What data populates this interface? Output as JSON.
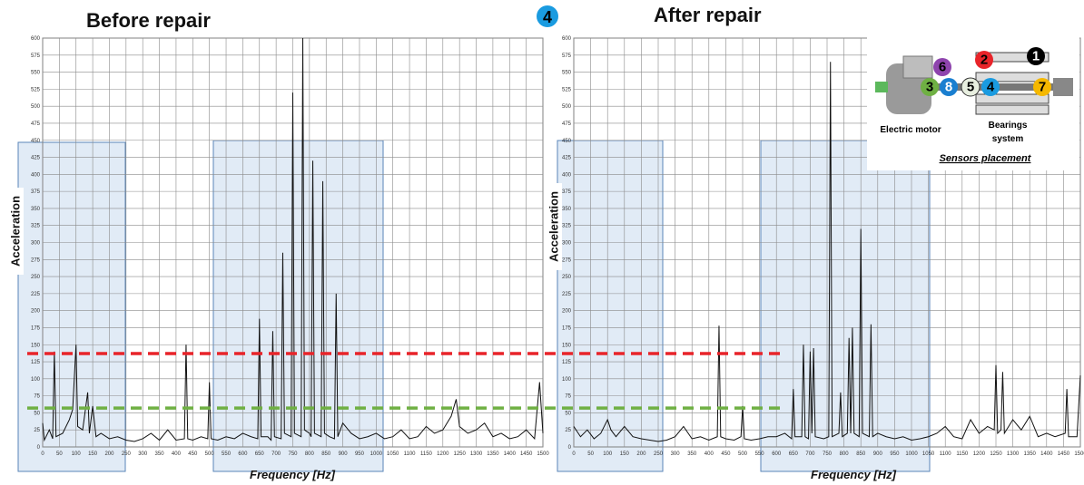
{
  "chart_data": [
    {
      "type": "line",
      "title": "Before repair",
      "x_label": "Frequency [Hz]",
      "y_label": "Acceleration",
      "color": "#111111",
      "grid": true,
      "xlim": [
        0,
        1500
      ],
      "ylim": [
        0,
        600
      ],
      "xticks": [
        0,
        50,
        100,
        150,
        200,
        250,
        300,
        350,
        400,
        450,
        500,
        550,
        600,
        650,
        700,
        750,
        800,
        850,
        900,
        950,
        1000,
        1050,
        1100,
        1150,
        1200,
        1250,
        1300,
        1350,
        1400,
        1450,
        1500
      ],
      "yticks": [
        0,
        25,
        50,
        75,
        100,
        125,
        150,
        175,
        200,
        225,
        250,
        275,
        300,
        325,
        350,
        375,
        400,
        425,
        450,
        475,
        500,
        525,
        550,
        575,
        600
      ],
      "thresholds": [
        {
          "value": 137,
          "color": "#e8242a"
        },
        {
          "value": 57,
          "color": "#6fb043"
        }
      ],
      "x": [
        0,
        5,
        20,
        30,
        35,
        40,
        60,
        80,
        90,
        100,
        105,
        120,
        135,
        140,
        150,
        160,
        175,
        200,
        225,
        250,
        275,
        300,
        325,
        350,
        375,
        400,
        425,
        430,
        435,
        450,
        475,
        495,
        500,
        505,
        525,
        550,
        575,
        600,
        625,
        645,
        650,
        655,
        675,
        685,
        690,
        695,
        715,
        720,
        725,
        745,
        750,
        755,
        775,
        780,
        785,
        800,
        805,
        810,
        815,
        835,
        840,
        845,
        860,
        875,
        880,
        885,
        900,
        925,
        950,
        975,
        1000,
        1025,
        1050,
        1075,
        1100,
        1125,
        1150,
        1175,
        1200,
        1225,
        1240,
        1250,
        1275,
        1300,
        1325,
        1350,
        1375,
        1400,
        1425,
        1450,
        1475,
        1490,
        1500
      ],
      "values": [
        35,
        10,
        25,
        12,
        140,
        15,
        20,
        40,
        55,
        150,
        30,
        25,
        80,
        20,
        60,
        15,
        20,
        12,
        15,
        10,
        8,
        12,
        20,
        10,
        25,
        10,
        12,
        150,
        12,
        10,
        15,
        12,
        95,
        12,
        10,
        15,
        12,
        20,
        15,
        12,
        188,
        15,
        15,
        10,
        170,
        15,
        12,
        285,
        20,
        15,
        520,
        20,
        15,
        600,
        25,
        20,
        15,
        420,
        20,
        15,
        390,
        20,
        15,
        12,
        225,
        15,
        35,
        20,
        12,
        15,
        20,
        12,
        15,
        25,
        12,
        15,
        30,
        20,
        25,
        45,
        70,
        30,
        20,
        25,
        35,
        15,
        20,
        12,
        15,
        25,
        12,
        95,
        20
      ]
    },
    {
      "type": "line",
      "title": "After repair",
      "x_label": "Frequency [Hz]",
      "y_label": "Acceleration",
      "color": "#111111",
      "grid": true,
      "xlim": [
        0,
        1500
      ],
      "ylim": [
        0,
        600
      ],
      "xticks": [
        0,
        50,
        100,
        150,
        200,
        250,
        300,
        350,
        400,
        450,
        500,
        550,
        600,
        650,
        700,
        750,
        800,
        850,
        900,
        950,
        1000,
        1050,
        1100,
        1150,
        1200,
        1250,
        1300,
        1350,
        1400,
        1450,
        1500
      ],
      "yticks": [
        0,
        25,
        50,
        75,
        100,
        125,
        150,
        175,
        200,
        225,
        250,
        275,
        300,
        325,
        350,
        375,
        400,
        425,
        450,
        475,
        500,
        525,
        550,
        575,
        600
      ],
      "x": [
        0,
        20,
        40,
        60,
        80,
        100,
        110,
        125,
        150,
        175,
        200,
        225,
        250,
        275,
        300,
        325,
        350,
        375,
        400,
        425,
        430,
        435,
        450,
        475,
        495,
        500,
        505,
        525,
        550,
        575,
        600,
        625,
        645,
        650,
        655,
        675,
        680,
        685,
        695,
        700,
        705,
        710,
        715,
        740,
        755,
        760,
        765,
        785,
        790,
        795,
        810,
        815,
        820,
        825,
        830,
        845,
        850,
        855,
        875,
        880,
        885,
        900,
        925,
        950,
        975,
        1000,
        1025,
        1050,
        1075,
        1100,
        1125,
        1150,
        1175,
        1200,
        1225,
        1245,
        1250,
        1255,
        1265,
        1270,
        1275,
        1300,
        1325,
        1350,
        1375,
        1400,
        1425,
        1455,
        1460,
        1465,
        1490,
        1500
      ],
      "values": [
        30,
        15,
        25,
        12,
        20,
        40,
        25,
        15,
        30,
        15,
        12,
        10,
        8,
        10,
        15,
        30,
        12,
        15,
        10,
        15,
        178,
        15,
        12,
        10,
        15,
        60,
        12,
        10,
        12,
        15,
        15,
        20,
        12,
        85,
        15,
        15,
        150,
        15,
        12,
        140,
        20,
        145,
        15,
        12,
        15,
        565,
        15,
        20,
        80,
        15,
        20,
        160,
        20,
        175,
        20,
        15,
        320,
        20,
        15,
        180,
        15,
        20,
        15,
        12,
        15,
        10,
        12,
        15,
        20,
        30,
        15,
        12,
        40,
        20,
        30,
        25,
        120,
        20,
        25,
        110,
        20,
        40,
        25,
        45,
        15,
        20,
        15,
        20,
        85,
        15,
        15,
        105
      ]
    }
  ],
  "badge": "4",
  "diagram": {
    "sensors": [
      "1",
      "2",
      "3",
      "4",
      "5",
      "6",
      "7",
      "8"
    ],
    "motor": "Electric motor",
    "bearings": [
      "Bearings",
      "system"
    ],
    "caption": "Sensors placement"
  }
}
